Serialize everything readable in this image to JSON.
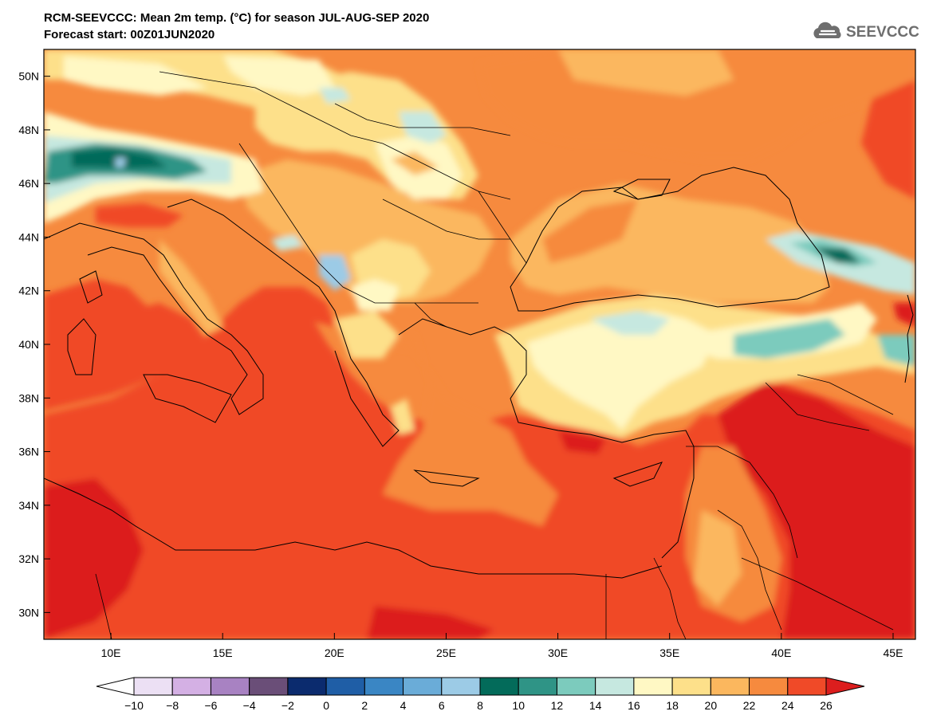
{
  "header": {
    "title_line1": "RCM-SEEVCCC: Mean 2m temp. (°C) for season JUL-AUG-SEP 2020",
    "title_line2": "Forecast start: 00Z01JUN2020",
    "logo_text": "SEEVCCC"
  },
  "map": {
    "projection": "lat-lon",
    "lon_range": [
      7,
      46
    ],
    "lat_range": [
      29,
      51
    ],
    "lon_ticks": [
      {
        "value": 10,
        "label": "10E"
      },
      {
        "value": 15,
        "label": "15E"
      },
      {
        "value": 20,
        "label": "20E"
      },
      {
        "value": 25,
        "label": "25E"
      },
      {
        "value": 30,
        "label": "30E"
      },
      {
        "value": 35,
        "label": "35E"
      },
      {
        "value": 40,
        "label": "40E"
      },
      {
        "value": 45,
        "label": "45E"
      }
    ],
    "lat_ticks": [
      {
        "value": 50,
        "label": "50N"
      },
      {
        "value": 48,
        "label": "48N"
      },
      {
        "value": 46,
        "label": "46N"
      },
      {
        "value": 44,
        "label": "44N"
      },
      {
        "value": 42,
        "label": "42N"
      },
      {
        "value": 40,
        "label": "40N"
      },
      {
        "value": 38,
        "label": "38N"
      },
      {
        "value": 36,
        "label": "36N"
      },
      {
        "value": 34,
        "label": "34N"
      },
      {
        "value": 32,
        "label": "32N"
      },
      {
        "value": 30,
        "label": "30N"
      }
    ]
  },
  "colorbar": {
    "tick_labels": [
      "-10",
      "-8",
      "-6",
      "-4",
      "-2",
      "0",
      "2",
      "4",
      "6",
      "8",
      "10",
      "12",
      "14",
      "16",
      "18",
      "20",
      "22",
      "24",
      "26"
    ],
    "low_extend_color": "#ffffff",
    "high_extend_color": "#dc1e1e",
    "bin_colors": [
      "#ece0f4",
      "#d4b0e4",
      "#a882c2",
      "#6a4e78",
      "#0b2b6e",
      "#1f5ea6",
      "#3a86c4",
      "#6aacd8",
      "#9ccbe6",
      "#036b5a",
      "#2f9486",
      "#7ccbbd",
      "#c6e8e0",
      "#fff8c4",
      "#fde08a",
      "#fbb75e",
      "#f68a3e",
      "#f04a28"
    ]
  }
}
